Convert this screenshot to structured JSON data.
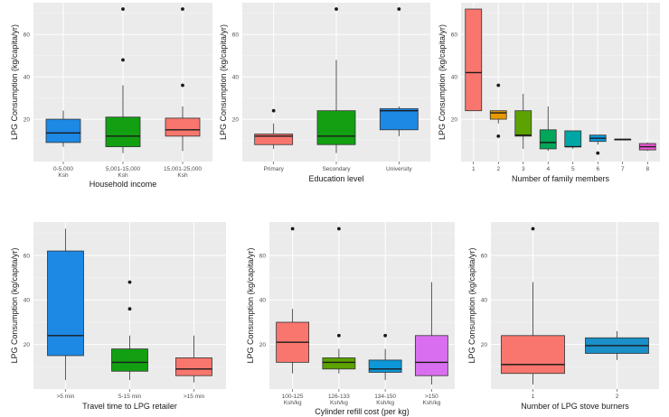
{
  "chart_data": [
    {
      "type": "boxplot",
      "xlabel": "Household income",
      "ylabel": "LPG Consumption (kg/capita/yr)",
      "ylim": [
        0,
        75
      ],
      "yticks": [
        20,
        40,
        60
      ],
      "categories": [
        {
          "label": "0-5,000",
          "label2": "Ksh",
          "color": "#1e88e5",
          "min": 7,
          "q1": 9,
          "median": 13.5,
          "q3": 20,
          "max": 24,
          "outliers": []
        },
        {
          "label": "5,001-15,000",
          "label2": "Ksh",
          "color": "#12a012",
          "min": 4,
          "q1": 7,
          "median": 12,
          "q3": 21,
          "max": 36,
          "outliers": [
            48,
            72
          ]
        },
        {
          "label": "15,001-25,000",
          "label2": "Ksh",
          "color": "#f8766d",
          "min": 5,
          "q1": 12,
          "median": 15,
          "q3": 20.5,
          "max": 26,
          "outliers": [
            36,
            72
          ]
        }
      ]
    },
    {
      "type": "boxplot",
      "xlabel": "Education level",
      "ylabel": "LPG Consumption (kg/capita/yr)",
      "ylim": [
        0,
        75
      ],
      "yticks": [
        20,
        40,
        60
      ],
      "categories": [
        {
          "label": "Primary",
          "label2": "",
          "color": "#f8766d",
          "min": 6,
          "q1": 8,
          "median": 12,
          "q3": 13,
          "max": 18,
          "outliers": [
            24
          ]
        },
        {
          "label": "Secondary",
          "label2": "",
          "color": "#12a012",
          "min": 4,
          "q1": 8,
          "median": 12,
          "q3": 24,
          "max": 48,
          "outliers": [
            72
          ]
        },
        {
          "label": "University",
          "label2": "",
          "color": "#1e88e5",
          "min": 12,
          "q1": 15,
          "median": 24,
          "q3": 25,
          "max": 26,
          "outliers": [
            72
          ]
        }
      ]
    },
    {
      "type": "boxplot",
      "xlabel": "Number of family members",
      "ylabel": "LPG Consumption (kg/capita/yr)",
      "ylim": [
        0,
        75
      ],
      "yticks": [
        20,
        40,
        60
      ],
      "categories": [
        {
          "label": "1",
          "label2": "",
          "color": "#f8766d",
          "min": 24,
          "q1": 24,
          "median": 42,
          "q3": 72,
          "max": 72,
          "outliers": []
        },
        {
          "label": "2",
          "label2": "",
          "color": "#e69a00",
          "min": 18,
          "q1": 20,
          "median": 23,
          "q3": 24,
          "max": 24,
          "outliers": [
            36,
            12
          ]
        },
        {
          "label": "3",
          "label2": "",
          "color": "#5ca200",
          "min": 6,
          "q1": 12,
          "median": 12.5,
          "q3": 24,
          "max": 32,
          "outliers": []
        },
        {
          "label": "4",
          "label2": "",
          "color": "#00a758",
          "min": 5,
          "q1": 6,
          "median": 9,
          "q3": 15,
          "max": 26,
          "outliers": []
        },
        {
          "label": "5",
          "label2": "",
          "color": "#00a5a5",
          "min": 6,
          "q1": 7,
          "median": 7,
          "q3": 14.5,
          "max": 14.5,
          "outliers": []
        },
        {
          "label": "6",
          "label2": "",
          "color": "#0d97d8",
          "min": 8,
          "q1": 9.5,
          "median": 11,
          "q3": 12.5,
          "max": 12.5,
          "outliers": [
            4
          ]
        },
        {
          "label": "7",
          "label2": "",
          "color": "#a97cf0",
          "min": 10.5,
          "q1": 10.5,
          "median": 10.5,
          "q3": 10.5,
          "max": 10.5,
          "outliers": []
        },
        {
          "label": "8",
          "label2": "",
          "color": "#e85ad0",
          "min": 5,
          "q1": 5.5,
          "median": 7,
          "q3": 8.5,
          "max": 9,
          "outliers": []
        }
      ]
    },
    {
      "type": "boxplot",
      "xlabel": "Travel time to LPG retailer",
      "ylabel": "LPG Consumption (kg/capita/yr)",
      "ylim": [
        0,
        75
      ],
      "yticks": [
        20,
        40,
        60
      ],
      "categories": [
        {
          "label": ">5 min",
          "label2": "",
          "color": "#1e88e5",
          "min": 4,
          "q1": 15,
          "median": 24,
          "q3": 62,
          "max": 72,
          "outliers": []
        },
        {
          "label": "5-15 min",
          "label2": "",
          "color": "#12a012",
          "min": 4,
          "q1": 8,
          "median": 12,
          "q3": 18,
          "max": 24,
          "outliers": [
            48,
            36
          ]
        },
        {
          "label": ">15 min",
          "label2": "",
          "color": "#f8766d",
          "min": 3,
          "q1": 6,
          "median": 9,
          "q3": 14,
          "max": 24,
          "outliers": []
        }
      ]
    },
    {
      "type": "boxplot",
      "xlabel": "Cylinder refill cost (per kg)",
      "ylabel": "LPG Consumption (kg/capita/yr)",
      "ylim": [
        0,
        75
      ],
      "yticks": [
        20,
        40,
        60
      ],
      "categories": [
        {
          "label": "100-125",
          "label2": "Ksh/kg",
          "color": "#f8766d",
          "min": 7,
          "q1": 12,
          "median": 21,
          "q3": 30,
          "max": 36,
          "outliers": [
            72
          ]
        },
        {
          "label": "126-133",
          "label2": "Ksh/kg",
          "color": "#5ca200",
          "min": 7,
          "q1": 9,
          "median": 12,
          "q3": 14,
          "max": 18,
          "outliers": [
            24,
            72
          ]
        },
        {
          "label": "134-150",
          "label2": "Ksh/kg",
          "color": "#0d97d8",
          "min": 4,
          "q1": 7.5,
          "median": 9,
          "q3": 13,
          "max": 18,
          "outliers": [
            24
          ]
        },
        {
          "label": ">150",
          "label2": "Ksh/kg",
          "color": "#d96ff0",
          "min": 2,
          "q1": 6,
          "median": 12,
          "q3": 24,
          "max": 48,
          "outliers": []
        }
      ]
    },
    {
      "type": "boxplot",
      "xlabel": "Number of LPG stove burners",
      "ylabel": "LPG Consumption (kg/capita/yr)",
      "ylim": [
        0,
        75
      ],
      "yticks": [
        20,
        40,
        60
      ],
      "categories": [
        {
          "label": "1",
          "label2": "",
          "color": "#f8766d",
          "min": 2,
          "q1": 7,
          "median": 11,
          "q3": 24,
          "max": 48,
          "outliers": [
            72
          ]
        },
        {
          "label": "2",
          "label2": "",
          "color": "#1a8fc8",
          "min": 13,
          "q1": 16,
          "median": 19.5,
          "q3": 23,
          "max": 26,
          "outliers": []
        }
      ]
    }
  ]
}
